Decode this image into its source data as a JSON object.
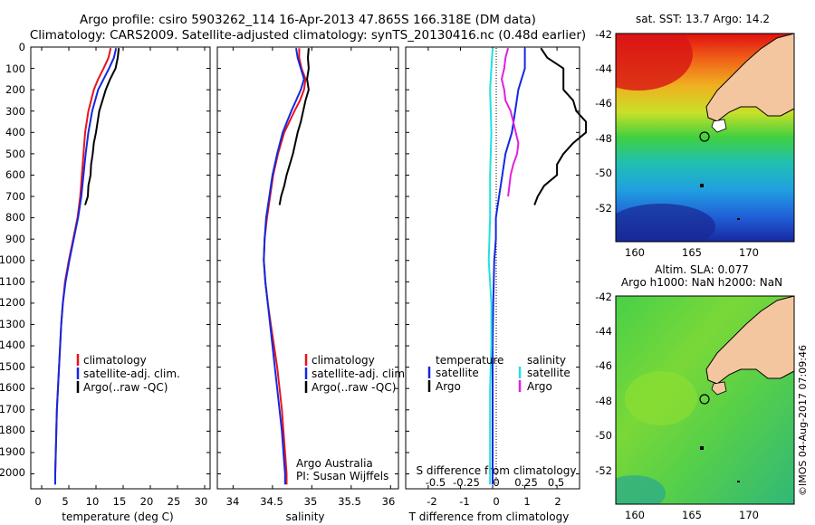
{
  "header": {
    "line1": "Argo profile: csiro 5903262_114 16-Apr-2013 47.865S 166.318E (DM data)",
    "line2": "Climatology: CARS2009. Satellite-adjusted climatology: synTS_20130416.nc (0.48d earlier)"
  },
  "colors": {
    "climatology": "#e8141c",
    "satellite": "#1428e0",
    "argo": "#000000",
    "sat_salinity": "#22e0e0",
    "argo_salinity": "#e020e0"
  },
  "chart_data": [
    {
      "type": "line",
      "name": "temperature-profile",
      "xlabel": "temperature (deg C)",
      "xlim": [
        -2,
        31
      ],
      "ylim": [
        2070,
        0
      ],
      "xticks": [
        "0",
        "5",
        "10",
        "15",
        "20",
        "25",
        "30"
      ],
      "yticks": [
        "0",
        "100",
        "200",
        "300",
        "400",
        "500",
        "600",
        "700",
        "800",
        "900",
        "1000",
        "1100",
        "1200",
        "1300",
        "1400",
        "1500",
        "1600",
        "1700",
        "1800",
        "1900",
        "2000"
      ],
      "legend": [
        "climatology",
        "satellite-adj. clim.",
        "Argo(..raw -QC)"
      ],
      "series": [
        {
          "name": "climatology",
          "depth": [
            5,
            50,
            100,
            150,
            200,
            300,
            400,
            500,
            600,
            700,
            800,
            900,
            1000,
            1100,
            1200,
            1300,
            1400,
            1500,
            1600,
            1700,
            1800,
            1900,
            2000,
            2050
          ],
          "values": [
            12.7,
            12.3,
            11.4,
            10.4,
            9.6,
            8.6,
            8.0,
            7.7,
            7.4,
            7.1,
            6.6,
            5.8,
            5.0,
            4.3,
            3.9,
            3.6,
            3.4,
            3.2,
            3.0,
            2.8,
            2.7,
            2.6,
            2.5,
            2.5
          ]
        },
        {
          "name": "satellite-adj. clim.",
          "depth": [
            5,
            50,
            100,
            150,
            200,
            300,
            400,
            500,
            600,
            700,
            800,
            900,
            1000,
            1100,
            1200,
            1300,
            1400,
            1500,
            1600,
            1700,
            1800,
            1900,
            2000,
            2050
          ],
          "values": [
            13.7,
            13.3,
            12.4,
            11.4,
            10.4,
            9.3,
            8.6,
            8.1,
            7.7,
            7.3,
            6.7,
            5.9,
            5.1,
            4.4,
            3.9,
            3.6,
            3.4,
            3.2,
            3.0,
            2.8,
            2.7,
            2.6,
            2.5,
            2.5
          ]
        },
        {
          "name": "Argo(..raw -QC)",
          "depth": [
            5,
            50,
            100,
            150,
            200,
            250,
            300,
            350,
            400,
            450,
            500,
            550,
            600,
            650,
            700,
            740
          ],
          "values": [
            14.2,
            14.0,
            13.6,
            12.6,
            11.8,
            11.2,
            10.6,
            10.3,
            10.0,
            9.6,
            9.4,
            9.1,
            9.0,
            8.6,
            8.5,
            8.0
          ]
        }
      ]
    },
    {
      "type": "line",
      "name": "salinity-profile",
      "xlabel": "salinity",
      "xlim": [
        33.8,
        36.1
      ],
      "ylim": [
        2070,
        0
      ],
      "xticks": [
        "34",
        "34.5",
        "35",
        "35.5",
        "36"
      ],
      "legend": [
        "climatology",
        "satellite-adj. clim.",
        "Argo(..raw -QC)"
      ],
      "annotation": [
        "Argo Australia",
        "PI: Susan Wijffels"
      ],
      "series": [
        {
          "name": "climatology",
          "depth": [
            5,
            50,
            100,
            150,
            200,
            250,
            300,
            400,
            500,
            600,
            700,
            800,
            900,
            1000,
            1100,
            1200,
            1300,
            1400,
            1500,
            1600,
            1700,
            1800,
            1900,
            2000,
            2050
          ],
          "values": [
            34.84,
            34.84,
            34.87,
            34.92,
            34.9,
            34.85,
            34.78,
            34.65,
            34.57,
            34.51,
            34.47,
            34.43,
            34.4,
            34.39,
            34.41,
            34.44,
            34.48,
            34.52,
            34.56,
            34.59,
            34.62,
            34.64,
            34.66,
            34.68,
            34.68
          ]
        },
        {
          "name": "satellite-adj. clim.",
          "depth": [
            5,
            50,
            100,
            150,
            200,
            250,
            300,
            400,
            500,
            600,
            700,
            800,
            900,
            1000,
            1100,
            1200,
            1300,
            1400,
            1500,
            1600,
            1700,
            1800,
            1900,
            2000,
            2050
          ],
          "values": [
            34.8,
            34.82,
            34.86,
            34.9,
            34.86,
            34.8,
            34.74,
            34.63,
            34.56,
            34.5,
            34.46,
            34.42,
            34.4,
            34.39,
            34.41,
            34.44,
            34.47,
            34.5,
            34.53,
            34.56,
            34.59,
            34.62,
            34.64,
            34.66,
            34.66
          ]
        },
        {
          "name": "Argo(..raw -QC)",
          "depth": [
            5,
            50,
            100,
            150,
            200,
            250,
            300,
            350,
            400,
            450,
            500,
            550,
            600,
            650,
            700,
            740
          ],
          "values": [
            34.96,
            34.95,
            34.96,
            34.94,
            34.96,
            34.92,
            34.89,
            34.86,
            34.82,
            34.79,
            34.76,
            34.72,
            34.68,
            34.65,
            34.61,
            34.59
          ]
        }
      ]
    },
    {
      "type": "line",
      "name": "difference-profile",
      "xlabel": "T difference from climatology",
      "xlabel_top": "S difference from climatology",
      "xlim": [
        -2.7,
        2.7
      ],
      "ylim": [
        2070,
        0
      ],
      "xticks": [
        "-2",
        "-1",
        "0",
        "1",
        "2"
      ],
      "xticks_top": [
        "-0.5",
        "-0.25",
        "0",
        "0.25",
        "0.5"
      ],
      "legend_temperature": {
        "title": "temperature",
        "items": [
          "satellite",
          "Argo"
        ]
      },
      "legend_salinity": {
        "title": "salinity",
        "items": [
          "satellite",
          "Argo"
        ]
      },
      "series": [
        {
          "name": "temperature satellite",
          "depth": [
            5,
            100,
            200,
            300,
            400,
            500,
            600,
            700,
            800,
            900,
            1000,
            1200,
            1400,
            1600,
            1800,
            2000,
            2050
          ],
          "values": [
            1.0,
            1.0,
            0.8,
            0.7,
            0.6,
            0.4,
            0.3,
            0.2,
            0.1,
            0.1,
            0.05,
            0.02,
            0.0,
            0.0,
            0.0,
            0.0,
            0.0
          ]
        },
        {
          "name": "temperature Argo",
          "depth": [
            5,
            50,
            100,
            150,
            200,
            250,
            300,
            350,
            400,
            450,
            500,
            550,
            600,
            650,
            700,
            740
          ],
          "values": [
            1.5,
            1.7,
            2.2,
            2.2,
            2.2,
            2.5,
            2.6,
            2.9,
            2.9,
            2.5,
            2.2,
            2.0,
            2.0,
            1.6,
            1.4,
            1.3
          ]
        },
        {
          "name": "salinity satellite",
          "depth": [
            5,
            200,
            400,
            600,
            800,
            1000,
            1200,
            1400,
            1600,
            1800,
            2000,
            2050
          ],
          "values": [
            0.0,
            -0.02,
            -0.01,
            -0.02,
            -0.02,
            -0.03,
            -0.01,
            -0.01,
            -0.02,
            -0.02,
            -0.02,
            -0.02
          ]
        },
        {
          "name": "salinity Argo",
          "depth": [
            5,
            50,
            100,
            150,
            200,
            250,
            300,
            350,
            400,
            450,
            500,
            550,
            600,
            650,
            700
          ],
          "values": [
            0.12,
            0.1,
            0.09,
            0.07,
            0.09,
            0.1,
            0.14,
            0.16,
            0.18,
            0.2,
            0.19,
            0.16,
            0.14,
            0.13,
            0.12
          ]
        }
      ]
    }
  ],
  "maps": {
    "top_title": "sat. SST: 13.7 Argo: 14.2",
    "bottom_title_1": "Altim. SLA: 0.077",
    "bottom_title_2": "Argo h1000: NaN h2000: NaN",
    "lat_ticks": [
      "-42",
      "-44",
      "-46",
      "-48",
      "-50",
      "-52"
    ],
    "lon_ticks": [
      "160",
      "165",
      "170"
    ],
    "profile_location": {
      "lat": -47.865,
      "lon": 166.318
    }
  },
  "credit": "©IMOS 04-Aug-2017 07:09:46"
}
